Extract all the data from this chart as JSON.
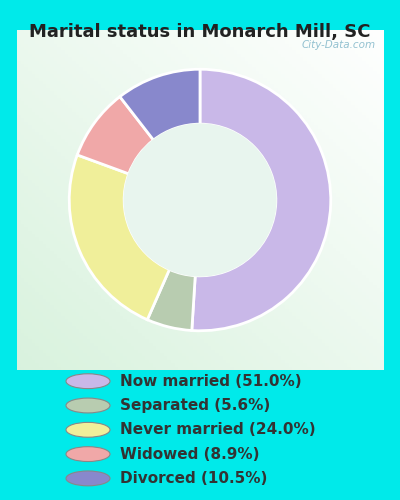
{
  "title": "Marital status in Monarch Mill, SC",
  "slices": [
    51.0,
    5.6,
    24.0,
    8.9,
    10.5
  ],
  "labels": [
    "Now married (51.0%)",
    "Separated (5.6%)",
    "Never married (24.0%)",
    "Widowed (8.9%)",
    "Divorced (10.5%)"
  ],
  "colors": [
    "#c9b8e8",
    "#b8ccb0",
    "#f0ef9a",
    "#f0a8a8",
    "#8888cc"
  ],
  "bg_cyan": "#00eaea",
  "chart_bg_color": "#e8f5ee",
  "title_fontsize": 13,
  "legend_fontsize": 11,
  "watermark": "City-Data.com",
  "start_angle": 90,
  "title_color": "#222222",
  "legend_text_color": "#333333"
}
